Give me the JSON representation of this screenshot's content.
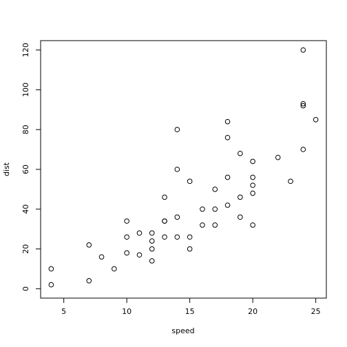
{
  "chart_data": {
    "type": "scatter",
    "x_label": "speed",
    "y_label": "dist",
    "x": [
      4,
      4,
      7,
      7,
      8,
      9,
      10,
      10,
      10,
      11,
      11,
      12,
      12,
      12,
      12,
      13,
      13,
      13,
      13,
      14,
      14,
      14,
      14,
      15,
      15,
      15,
      16,
      16,
      17,
      17,
      17,
      18,
      18,
      18,
      18,
      19,
      19,
      19,
      20,
      20,
      20,
      20,
      20,
      22,
      23,
      24,
      24,
      24,
      24,
      25
    ],
    "series": [
      {
        "color": "#000000",
        "values": [
          2,
          10,
          4,
          22,
          16,
          10,
          18,
          26,
          34,
          17,
          28,
          14,
          20,
          24,
          28,
          26,
          34,
          34,
          46,
          26,
          36,
          60,
          80,
          20,
          26,
          54,
          32,
          40,
          32,
          40,
          50,
          42,
          56,
          76,
          84,
          36,
          46,
          68,
          32,
          48,
          52,
          56,
          64,
          66,
          54,
          70,
          92,
          93,
          120,
          85
        ]
      }
    ],
    "xlim": [
      3.16,
      25.84
    ],
    "ylim": [
      -4.72,
      124.72
    ],
    "xticks": [
      5,
      10,
      15,
      20,
      25
    ],
    "yticks": [
      0,
      20,
      40,
      60,
      80,
      100,
      120
    ]
  }
}
